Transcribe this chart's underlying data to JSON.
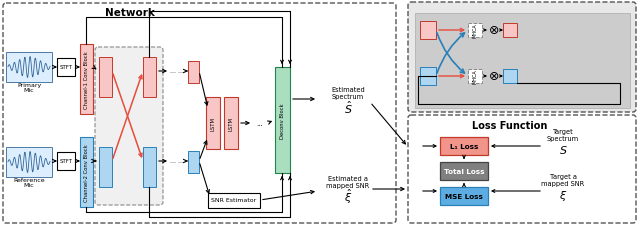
{
  "network_title": "Network",
  "loss_title": "Loss Function",
  "primary_label": "Primary\nMic",
  "reference_label": "Reference\nMic",
  "ch1_label": "Channel-1 Conv Block",
  "ch2_label": "Channel-2 Conv Block",
  "lstm_label": "LSTM",
  "deconv_label": "Deconv Block",
  "snr_label": "SNR Estimator",
  "l1_label": "L₁ Loss",
  "total_label": "Total Loss",
  "mse_label": "MSE Loss",
  "est_spec_label": "Estimated\nSpectrum",
  "tgt_spec_label": "Target\nSpectrum",
  "est_snr_label": "Estimated a\nmapped SNR",
  "tgt_snr_label": "Target a\nmapped SNR",
  "mhca_label": "MHCA",
  "pink": "#f1948a",
  "light_pink": "#f9c6c6",
  "blue": "#5dade2",
  "light_blue": "#aed6f1",
  "green": "#a9dfbf",
  "gray": "#808080",
  "red": "#e74c3c",
  "dark_blue": "#2980b9",
  "dark_red": "#c0392b",
  "dark_green": "#1e8449"
}
